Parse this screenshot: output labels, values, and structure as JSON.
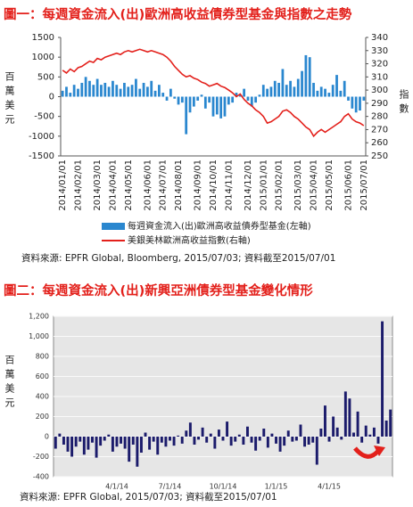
{
  "chart_data": [
    {
      "type": "bar",
      "title": "圖一：每週資金流入(出)歐洲高收益債券型基金與指數之走勢",
      "ylabel": "百萬美元",
      "y2label": "指數",
      "source": "資料來源: EPFR Global, Bloomberg, 2015/07/03; 資料截至2015/07/01",
      "categories": [
        "2014/01/01",
        null,
        null,
        null,
        "2014/02/01",
        null,
        null,
        null,
        null,
        "2014/03/01",
        null,
        null,
        null,
        "2014/04/01",
        null,
        null,
        null,
        "2014/05/01",
        null,
        null,
        null,
        null,
        "2014/06/01",
        null,
        null,
        null,
        "2014/07/01",
        null,
        null,
        null,
        "2014/08/01",
        null,
        null,
        null,
        null,
        "2014/09/01",
        null,
        null,
        null,
        "2014/10/01",
        null,
        null,
        null,
        "2014/11/01",
        null,
        null,
        null,
        null,
        "2014/12/01",
        null,
        null,
        null,
        "2015/01/01",
        null,
        null,
        null,
        "2015/02/01",
        null,
        null,
        null,
        null,
        "2015/03/01",
        null,
        null,
        null,
        "2015/04/01",
        null,
        null,
        null,
        "2015/05/01",
        null,
        null,
        null,
        null,
        "2015/06/01",
        null,
        null,
        null,
        "2015/07/01"
      ],
      "series": [
        {
          "name": "每週資金流入(出)歐洲高收益債券型基金(左軸)",
          "type": "bar",
          "color": "#2a87cf",
          "axis": "y",
          "values": [
            150,
            250,
            100,
            300,
            200,
            350,
            500,
            400,
            300,
            450,
            300,
            350,
            250,
            400,
            300,
            200,
            350,
            250,
            300,
            450,
            200,
            350,
            250,
            400,
            150,
            300,
            100,
            -100,
            200,
            -50,
            -200,
            -150,
            -950,
            -400,
            -250,
            -100,
            50,
            -300,
            -150,
            -500,
            -450,
            -550,
            -500,
            -200,
            -150,
            100,
            50,
            200,
            -100,
            -250,
            -150,
            50,
            300,
            200,
            250,
            400,
            350,
            700,
            300,
            400,
            250,
            450,
            650,
            1050,
            1000,
            350,
            150,
            250,
            200,
            100,
            300,
            550,
            150,
            400,
            -100,
            -300,
            -400,
            -350,
            -100
          ]
        },
        {
          "name": "美銀美林歐洲高收益指數(右軸)",
          "type": "line",
          "color": "#e3201b",
          "axis": "y2",
          "values": [
            315,
            313,
            316,
            314,
            317,
            318,
            320,
            322,
            321,
            324,
            323,
            325,
            326,
            327,
            328,
            327,
            329,
            330,
            329,
            330,
            331,
            330,
            329,
            330,
            329,
            328,
            327,
            325,
            322,
            318,
            315,
            312,
            310,
            311,
            309,
            308,
            306,
            305,
            303,
            304,
            305,
            303,
            302,
            300,
            298,
            295,
            297,
            293,
            290,
            288,
            285,
            283,
            280,
            275,
            276,
            278,
            280,
            284,
            285,
            283,
            280,
            278,
            275,
            272,
            270,
            265,
            268,
            270,
            268,
            270,
            272,
            274,
            276,
            280,
            282,
            278,
            276,
            275,
            273
          ]
        }
      ],
      "ylim": [
        -1500,
        1500
      ],
      "yticks": [
        1500,
        1000,
        500,
        0,
        -500,
        -1000,
        -1500
      ],
      "y2lim": [
        250,
        340
      ],
      "y2ticks": [
        340,
        330,
        320,
        310,
        300,
        290,
        280,
        270,
        260,
        250
      ],
      "grid": false
    },
    {
      "type": "bar",
      "title": "圖二：每週資金流入(出)新興亞洲債券型基金變化情形",
      "ylabel": "百萬美元",
      "source": "資料來源: EPFR Global, 2015/07/03; 資料截至2015/07/01",
      "categories": [
        null,
        null,
        null,
        null,
        null,
        null,
        null,
        null,
        null,
        null,
        null,
        null,
        null,
        null,
        null,
        "4/1/14",
        null,
        null,
        null,
        null,
        null,
        null,
        null,
        null,
        null,
        null,
        null,
        null,
        "7/1/14",
        null,
        null,
        null,
        null,
        null,
        null,
        null,
        null,
        null,
        null,
        null,
        null,
        "10/1/14",
        null,
        null,
        null,
        null,
        null,
        null,
        null,
        null,
        null,
        null,
        null,
        null,
        "1/1/15",
        null,
        null,
        null,
        null,
        null,
        null,
        null,
        null,
        null,
        null,
        null,
        null,
        "4/1/15",
        null,
        null,
        null,
        null,
        null,
        null,
        null,
        null,
        null,
        null,
        null,
        null,
        null,
        null,
        null
      ],
      "color": "#1b1b6b",
      "values": [
        -120,
        30,
        -80,
        -150,
        -200,
        -100,
        -50,
        -180,
        -130,
        -60,
        -210,
        -90,
        -40,
        20,
        -150,
        -100,
        -70,
        -120,
        -250,
        -80,
        -300,
        -160,
        40,
        -130,
        -50,
        -180,
        -60,
        -100,
        -40,
        -90,
        10,
        -70,
        60,
        140,
        -80,
        -30,
        90,
        -60,
        30,
        -120,
        70,
        -40,
        150,
        -90,
        -50,
        20,
        -80,
        100,
        -60,
        -140,
        -40,
        80,
        -110,
        30,
        -70,
        -150,
        -90,
        60,
        -50,
        -40,
        120,
        -100,
        -80,
        -60,
        -280,
        80,
        310,
        -50,
        200,
        90,
        -30,
        450,
        380,
        40,
        250,
        -60,
        110,
        20,
        90,
        -70,
        1150,
        160,
        270
      ],
      "ylim": [
        -400,
        1200
      ],
      "yticks": [
        {
          "value": 1200,
          "label": "1,200"
        },
        {
          "value": 1000,
          "label": "1,000"
        },
        800,
        600,
        400,
        200,
        0,
        -200,
        -400
      ],
      "grid": true
    }
  ]
}
